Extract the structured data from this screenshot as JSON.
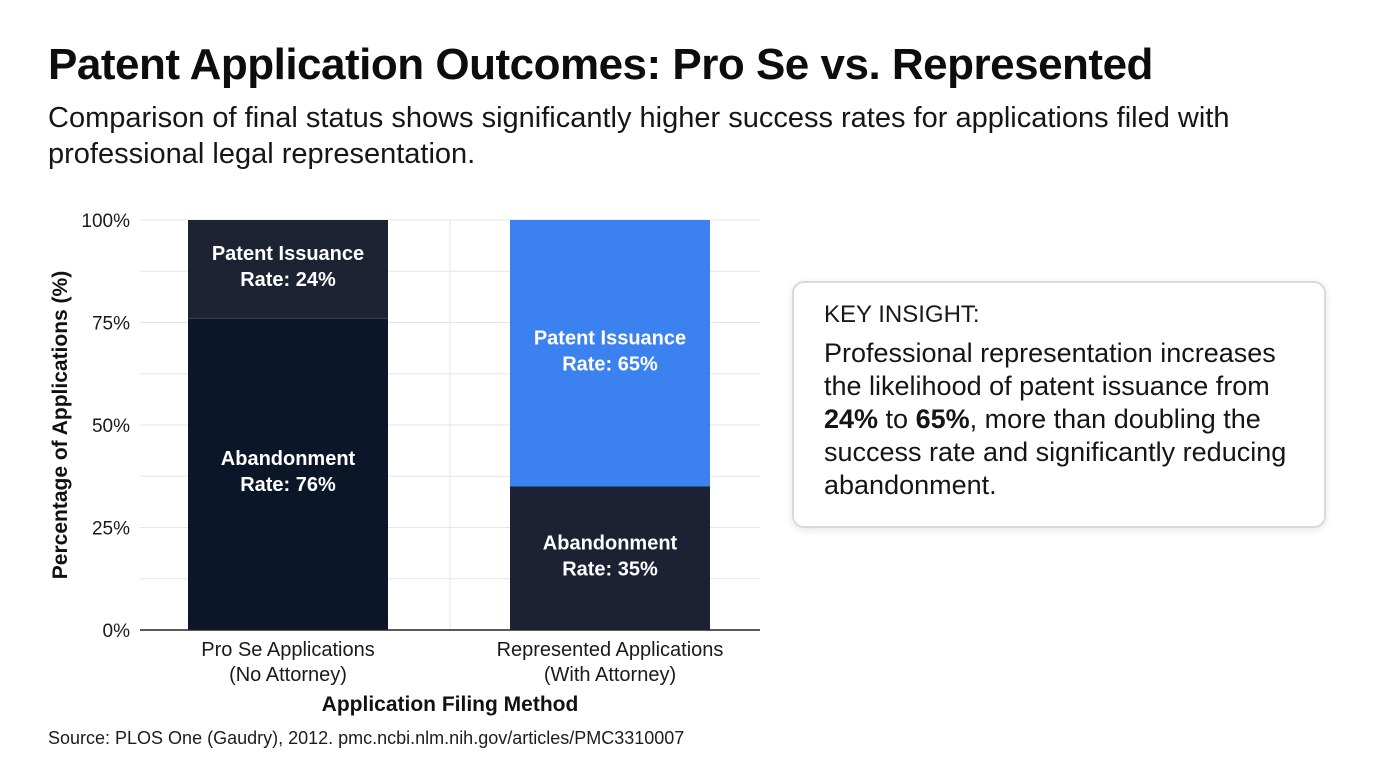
{
  "title": "Patent Application Outcomes: Pro Se vs. Represented",
  "subtitle": "Comparison of final status shows significantly higher success rates for applications filed with professional legal representation.",
  "source": "Source: PLOS One (Gaudry), 2012. pmc.ncbi.nlm.nih.gov/articles/PMC3310007",
  "callout": {
    "heading": "KEY INSIGHT:",
    "text_before": "Professional representation increases the likelihood of patent issuance from ",
    "value_from": "24%",
    "text_middle": " to ",
    "value_to": "65%",
    "text_after": ", more than doubling the success rate and significantly reducing abandonment."
  },
  "colors": {
    "pro_se_issuance": "#1e2334",
    "pro_se_abandonment": "#0c1629",
    "represented_issuance": "#3b82f0",
    "represented_abandonment": "#1c2233",
    "grid": "#e6e6e6",
    "axis": "#222222"
  },
  "chart_data": {
    "type": "bar",
    "stacked": true,
    "xlabel": "Application Filing Method",
    "ylabel": "Percentage of Applications (%)",
    "ylim": [
      0,
      100
    ],
    "y_ticks": [
      "0%",
      "25%",
      "50%",
      "75%",
      "100%"
    ],
    "y_tick_values": [
      0,
      25,
      50,
      75,
      100
    ],
    "grid": true,
    "categories": [
      [
        "Pro Se Applications",
        "(No Attorney)"
      ],
      [
        "Represented Applications",
        "(With Attorney)"
      ]
    ],
    "series": [
      {
        "key": "abandonment",
        "values": [
          76,
          35
        ],
        "labels": [
          [
            "Abandonment",
            "Rate: 76%"
          ],
          [
            "Abandonment",
            "Rate: 35%"
          ]
        ],
        "colors": [
          "#0c1629",
          "#1c2233"
        ]
      },
      {
        "key": "issuance",
        "values": [
          24,
          65
        ],
        "labels": [
          [
            "Patent Issuance",
            "Rate: 24%"
          ],
          [
            "Patent Issuance",
            "Rate: 65%"
          ]
        ],
        "colors": [
          "#1e2334",
          "#3b82f0"
        ]
      }
    ]
  }
}
